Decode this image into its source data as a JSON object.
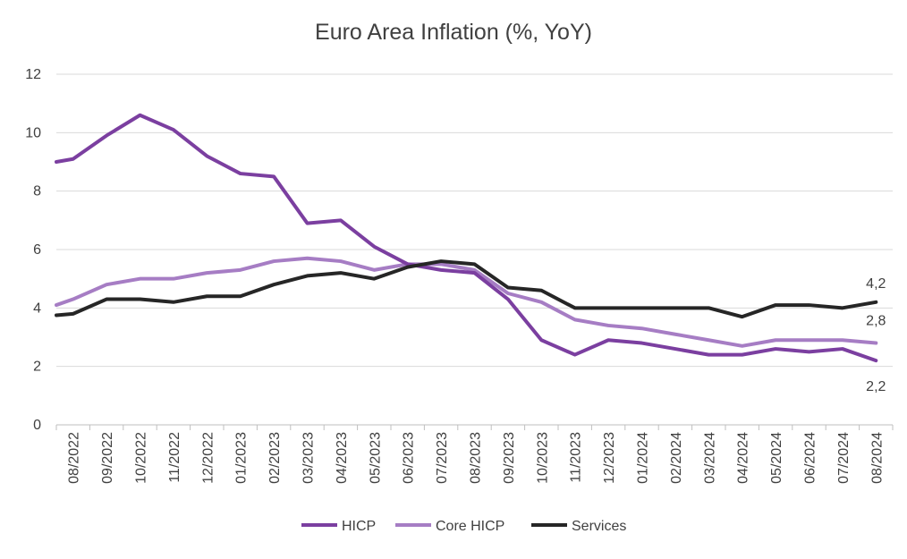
{
  "chart_data": {
    "type": "line",
    "title": "Euro Area Inflation (%, YoY)",
    "xlabel": "",
    "ylabel": "",
    "ylim": [
      0,
      12
    ],
    "yticks": [
      0,
      2,
      4,
      6,
      8,
      10,
      12
    ],
    "grid": "horizontal",
    "legend_position": "bottom",
    "categories": [
      "08/2022",
      "09/2022",
      "10/2022",
      "11/2022",
      "12/2022",
      "01/2023",
      "02/2023",
      "03/2023",
      "04/2023",
      "05/2023",
      "06/2023",
      "07/2023",
      "08/2023",
      "09/2023",
      "10/2023",
      "11/2023",
      "12/2023",
      "01/2024",
      "02/2024",
      "03/2024",
      "04/2024",
      "05/2024",
      "06/2024",
      "07/2024",
      "08/2024"
    ],
    "series": [
      {
        "name": "HICP",
        "color": "#7B3FA0",
        "start": 9.0,
        "values": [
          9.1,
          9.9,
          10.6,
          10.1,
          9.2,
          8.6,
          8.5,
          6.9,
          7.0,
          6.1,
          5.5,
          5.3,
          5.2,
          4.3,
          2.9,
          2.4,
          2.9,
          2.8,
          2.6,
          2.4,
          2.4,
          2.6,
          2.5,
          2.6,
          2.2
        ],
        "end_label": "2,2"
      },
      {
        "name": "Core HICP",
        "color": "#A67DC4",
        "start": 4.1,
        "values": [
          4.3,
          4.8,
          5.0,
          5.0,
          5.2,
          5.3,
          5.6,
          5.7,
          5.6,
          5.3,
          5.5,
          5.5,
          5.3,
          4.5,
          4.2,
          3.6,
          3.4,
          3.3,
          3.1,
          2.9,
          2.7,
          2.9,
          2.9,
          2.9,
          2.8
        ],
        "end_label": "2,8"
      },
      {
        "name": "Services",
        "color": "#262626",
        "start": 3.75,
        "values": [
          3.8,
          4.3,
          4.3,
          4.2,
          4.4,
          4.4,
          4.8,
          5.1,
          5.2,
          5.0,
          5.4,
          5.6,
          5.5,
          4.7,
          4.6,
          4.0,
          4.0,
          4.0,
          4.0,
          4.0,
          3.7,
          4.1,
          4.1,
          4.0,
          4.2
        ],
        "end_label": "4,2"
      }
    ]
  }
}
